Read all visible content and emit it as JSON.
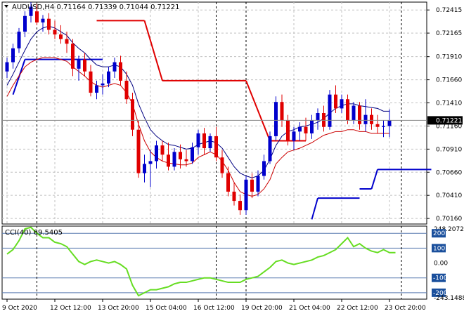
{
  "chart_data": [
    {
      "type": "candlestick",
      "symbol": "AUDUSD",
      "timeframe": "H4",
      "header": {
        "open": "0.71164",
        "high": "0.71339",
        "low": "0.71044",
        "close": "0.71221"
      },
      "ylim": [
        0.701,
        0.725
      ],
      "y_ticks": [
        "0.72415",
        "0.72165",
        "0.71910",
        "0.71660",
        "0.71410",
        "0.71160",
        "0.70910",
        "0.70660",
        "0.70410",
        "0.70160"
      ],
      "current_price_label": "0.71221",
      "current_price": 0.71221,
      "x_ticks": [
        "9 Oct 2020",
        "12 Oct 12:00",
        "13 Oct 20:00",
        "15 Oct 04:00",
        "16 Oct 12:00",
        "19 Oct 20:00",
        "21 Oct 04:00",
        "22 Oct 12:00",
        "23 Oct 20:00"
      ],
      "x_tick_index": [
        0,
        8,
        16,
        24,
        32,
        40,
        48,
        56,
        64
      ],
      "day_separator_index": [
        5,
        35,
        40,
        66
      ],
      "candles": [
        [
          0.7175,
          0.719,
          0.7168,
          0.7185
        ],
        [
          0.7185,
          0.7205,
          0.7178,
          0.72
        ],
        [
          0.72,
          0.7222,
          0.7195,
          0.7218
        ],
        [
          0.7218,
          0.724,
          0.7212,
          0.7235
        ],
        [
          0.7235,
          0.725,
          0.7228,
          0.7245
        ],
        [
          0.724,
          0.7248,
          0.7225,
          0.7228
        ],
        [
          0.7228,
          0.7236,
          0.7218,
          0.7232
        ],
        [
          0.7232,
          0.7238,
          0.7215,
          0.722
        ],
        [
          0.722,
          0.723,
          0.721,
          0.7215
        ],
        [
          0.7215,
          0.7225,
          0.7205,
          0.721
        ],
        [
          0.721,
          0.7218,
          0.7195,
          0.7205
        ],
        [
          0.7205,
          0.721,
          0.717,
          0.7178
        ],
        [
          0.7178,
          0.7192,
          0.7165,
          0.7188
        ],
        [
          0.7188,
          0.7195,
          0.717,
          0.7175
        ],
        [
          0.7175,
          0.7182,
          0.7148,
          0.7152
        ],
        [
          0.7152,
          0.7165,
          0.7145,
          0.716
        ],
        [
          0.716,
          0.7172,
          0.715,
          0.7162
        ],
        [
          0.7162,
          0.718,
          0.7158,
          0.7175
        ],
        [
          0.7175,
          0.719,
          0.7168,
          0.7185
        ],
        [
          0.7185,
          0.7192,
          0.716,
          0.7165
        ],
        [
          0.7165,
          0.7175,
          0.714,
          0.7145
        ],
        [
          0.7145,
          0.7152,
          0.7105,
          0.7112
        ],
        [
          0.7112,
          0.7122,
          0.706,
          0.7065
        ],
        [
          0.7065,
          0.7085,
          0.7055,
          0.7075
        ],
        [
          0.7075,
          0.709,
          0.705,
          0.7078
        ],
        [
          0.7078,
          0.71,
          0.707,
          0.7095
        ],
        [
          0.7095,
          0.71,
          0.7078,
          0.7085
        ],
        [
          0.7085,
          0.7098,
          0.7068,
          0.7072
        ],
        [
          0.7072,
          0.7092,
          0.7068,
          0.7088
        ],
        [
          0.7088,
          0.7096,
          0.707,
          0.708
        ],
        [
          0.708,
          0.709,
          0.7072,
          0.7078
        ],
        [
          0.7078,
          0.7098,
          0.7075,
          0.7093
        ],
        [
          0.7093,
          0.7112,
          0.7085,
          0.7108
        ],
        [
          0.7108,
          0.7114,
          0.7085,
          0.7092
        ],
        [
          0.7092,
          0.7108,
          0.7088,
          0.7105
        ],
        [
          0.7105,
          0.7115,
          0.7078,
          0.7082
        ],
        [
          0.7082,
          0.709,
          0.706,
          0.7065
        ],
        [
          0.7065,
          0.7072,
          0.704,
          0.7045
        ],
        [
          0.7045,
          0.7055,
          0.703,
          0.7035
        ],
        [
          0.7035,
          0.7042,
          0.702,
          0.7025
        ],
        [
          0.7025,
          0.7062,
          0.702,
          0.7058
        ],
        [
          0.7058,
          0.7065,
          0.7038,
          0.7045
        ],
        [
          0.7045,
          0.7068,
          0.704,
          0.7062
        ],
        [
          0.7062,
          0.7085,
          0.7058,
          0.7078
        ],
        [
          0.7078,
          0.711,
          0.7075,
          0.7105
        ],
        [
          0.7105,
          0.7148,
          0.71,
          0.7142
        ],
        [
          0.7142,
          0.715,
          0.7115,
          0.7122
        ],
        [
          0.7122,
          0.7128,
          0.7095,
          0.71
        ],
        [
          0.71,
          0.7115,
          0.709,
          0.711
        ],
        [
          0.711,
          0.712,
          0.71,
          0.7115
        ],
        [
          0.7115,
          0.7125,
          0.71,
          0.7108
        ],
        [
          0.7108,
          0.7128,
          0.7102,
          0.7122
        ],
        [
          0.7122,
          0.7135,
          0.7112,
          0.713
        ],
        [
          0.713,
          0.7138,
          0.711,
          0.7115
        ],
        [
          0.7115,
          0.7155,
          0.7112,
          0.715
        ],
        [
          0.715,
          0.716,
          0.713,
          0.7135
        ],
        [
          0.7135,
          0.715,
          0.713,
          0.7145
        ],
        [
          0.7145,
          0.715,
          0.7118,
          0.7122
        ],
        [
          0.7122,
          0.7142,
          0.7118,
          0.7138
        ],
        [
          0.7138,
          0.7142,
          0.7112,
          0.7118
        ],
        [
          0.7118,
          0.7145,
          0.711,
          0.7128
        ],
        [
          0.7128,
          0.7135,
          0.7112,
          0.7118
        ],
        [
          0.7118,
          0.7128,
          0.7108,
          0.7115
        ],
        [
          0.7115,
          0.7122,
          0.7104,
          0.7116
        ],
        [
          0.7116,
          0.7134,
          0.7104,
          0.7122
        ]
      ],
      "ma_upper": [
        0.716,
        0.7172,
        0.7185,
        0.7198,
        0.721,
        0.7218,
        0.7222,
        0.7224,
        0.7222,
        0.7218,
        0.7214,
        0.7206,
        0.72,
        0.7195,
        0.7188,
        0.7182,
        0.718,
        0.718,
        0.7182,
        0.718,
        0.7172,
        0.716,
        0.714,
        0.7125,
        0.7112,
        0.7105,
        0.71,
        0.7096,
        0.7095,
        0.7093,
        0.7091,
        0.7092,
        0.7096,
        0.7098,
        0.71,
        0.7098,
        0.7092,
        0.7082,
        0.7072,
        0.7065,
        0.7062,
        0.706,
        0.7062,
        0.7068,
        0.708,
        0.7095,
        0.7105,
        0.711,
        0.7112,
        0.7115,
        0.7116,
        0.7118,
        0.712,
        0.7124,
        0.713,
        0.7135,
        0.7138,
        0.714,
        0.714,
        0.7138,
        0.7137,
        0.7136,
        0.7135,
        0.7132,
        0.7132
      ],
      "ma_lower": [
        0.7148,
        0.716,
        0.717,
        0.718,
        0.7185,
        0.7188,
        0.719,
        0.719,
        0.719,
        0.7188,
        0.7186,
        0.718,
        0.7175,
        0.717,
        0.7164,
        0.716,
        0.7158,
        0.716,
        0.7162,
        0.716,
        0.7152,
        0.714,
        0.7118,
        0.71,
        0.7088,
        0.7082,
        0.7078,
        0.7076,
        0.7075,
        0.7074,
        0.7074,
        0.7076,
        0.7082,
        0.7085,
        0.7088,
        0.7085,
        0.7078,
        0.7068,
        0.7055,
        0.7045,
        0.7042,
        0.704,
        0.7042,
        0.7048,
        0.7058,
        0.7075,
        0.7082,
        0.7088,
        0.709,
        0.7092,
        0.7095,
        0.7098,
        0.7102,
        0.7106,
        0.7108,
        0.711,
        0.711,
        0.7112,
        0.7112,
        0.711,
        0.711,
        0.7108,
        0.7108,
        0.7108,
        0.7108
      ],
      "blue_level": [
        {
          "from": 1,
          "to": 3,
          "y0": 0.715,
          "y1": 0.7188
        },
        {
          "from": 3,
          "to": 16,
          "y0": 0.7188,
          "y1": 0.7188
        },
        {
          "from": 51,
          "to": 52,
          "y0": 0.7015,
          "y1": 0.7038
        },
        {
          "from": 52,
          "to": 59,
          "y0": 0.7038,
          "y1": 0.7038
        },
        {
          "from": 59,
          "to": 61,
          "y0": 0.7048,
          "y1": 0.7048
        },
        {
          "from": 61,
          "to": 62,
          "y0": 0.7048,
          "y1": 0.7069
        },
        {
          "from": 62,
          "to": 71,
          "y0": 0.7069,
          "y1": 0.7069
        }
      ],
      "red_level": [
        {
          "from": 15,
          "to": 23,
          "y0": 0.723,
          "y1": 0.723
        },
        {
          "from": 23,
          "to": 26,
          "y0": 0.723,
          "y1": 0.7165
        },
        {
          "from": 26,
          "to": 40,
          "y0": 0.7165,
          "y1": 0.7165
        },
        {
          "from": 40,
          "to": 44,
          "y0": 0.7165,
          "y1": 0.71
        },
        {
          "from": 44,
          "to": 50,
          "y0": 0.71,
          "y1": 0.71
        }
      ]
    },
    {
      "type": "line",
      "indicator_label": "CCI(40) 69.5405",
      "ylim": [
        -243.1488,
        248.2072
      ],
      "y_ticks": [
        "248.2072",
        "200",
        "100",
        "0.00",
        "-100",
        "-200",
        "-243.1488"
      ],
      "levels": [
        200,
        100,
        -100,
        -200
      ],
      "series": [
        {
          "values": [
            60,
            90,
            150,
            230,
            240,
            200,
            170,
            170,
            140,
            130,
            110,
            60,
            10,
            -10,
            10,
            20,
            10,
            0,
            10,
            -10,
            -40,
            -150,
            -220,
            -200,
            -180,
            -180,
            -170,
            -160,
            -140,
            -130,
            -130,
            -120,
            -110,
            -100,
            -100,
            -110,
            -120,
            -130,
            -130,
            -130,
            -110,
            -100,
            -90,
            -60,
            -30,
            10,
            20,
            0,
            -10,
            0,
            10,
            20,
            40,
            50,
            70,
            90,
            130,
            170,
            110,
            130,
            100,
            80,
            70,
            90,
            70,
            70
          ]
        }
      ]
    }
  ],
  "colors": {
    "bull": "#0000cc",
    "bear": "#e00000",
    "ma_upper": "#000080",
    "ma_lower": "#cc0000",
    "cci": "#66dd22",
    "current_price_box": "#000000",
    "cci_badge": "#1a4f9c"
  }
}
